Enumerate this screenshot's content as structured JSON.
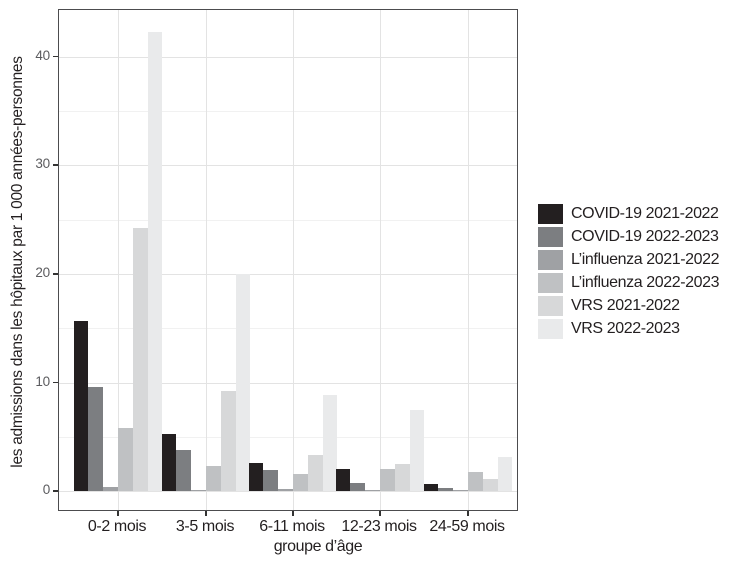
{
  "chart_data": {
    "type": "bar",
    "title": "",
    "xlabel": "groupe d’âge",
    "ylabel": "les admissions dans les hôpitaux par 1 000 années-personnes",
    "categories": [
      "0-2 mois",
      "3-5 mois",
      "6-11 mois",
      "12-23 mois",
      "24-59 mois"
    ],
    "series": [
      {
        "name": "COVID-19 2021-2022",
        "color": "#231f20",
        "values": [
          15.7,
          5.3,
          2.6,
          2.1,
          0.7
        ]
      },
      {
        "name": "COVID-19 2022-2023",
        "color": "#7c7e81",
        "values": [
          9.6,
          3.8,
          2.0,
          0.8,
          0.3
        ]
      },
      {
        "name": "L’influenza 2021-2022",
        "color": "#9fa1a4",
        "values": [
          0.4,
          0.1,
          0.2,
          0.1,
          0.1
        ]
      },
      {
        "name": "L’influenza 2022-2023",
        "color": "#bfc1c3",
        "values": [
          5.8,
          2.3,
          1.6,
          2.1,
          1.8
        ]
      },
      {
        "name": "VRS 2021-2022",
        "color": "#d7d8d9",
        "values": [
          24.2,
          9.2,
          3.3,
          2.5,
          1.1
        ]
      },
      {
        "name": "VRS 2022-2023",
        "color": "#e9eaeb",
        "values": [
          42.3,
          20.0,
          8.9,
          7.5,
          3.2
        ]
      }
    ],
    "y_ticks": [
      0,
      10,
      20,
      30,
      40
    ],
    "y_minor_ticks": [
      5,
      15,
      25,
      35
    ],
    "ylim": [
      -1.9,
      44.3
    ],
    "grid": true,
    "legend_position": "right",
    "colors": {
      "axis_text": "#5b5b5e",
      "label_text": "#231f20",
      "panel_border": "#4c4c4e",
      "grid_major": "#e3e3e3",
      "grid_minor": "#f1f1f1"
    }
  }
}
